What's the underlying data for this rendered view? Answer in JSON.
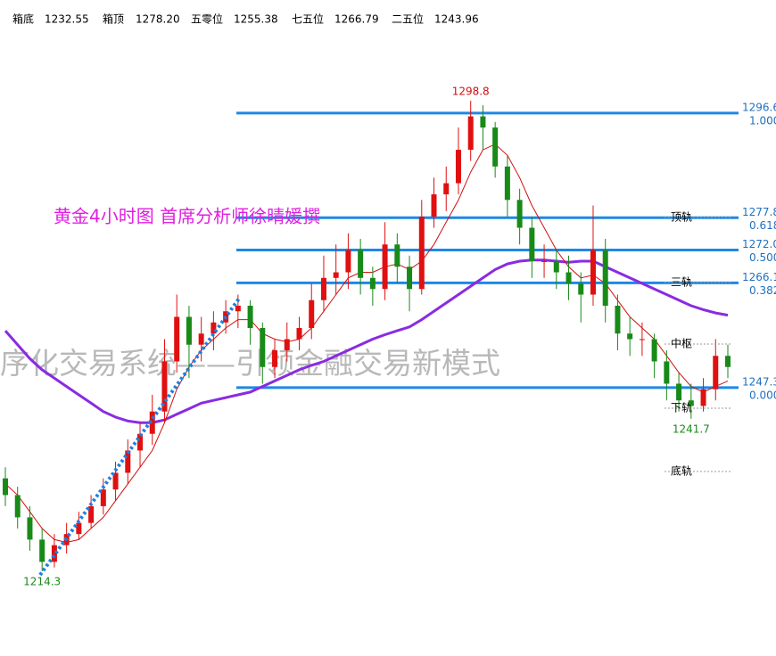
{
  "header": [
    {
      "label": "箱底",
      "value": "1232.55"
    },
    {
      "label": "箱顶",
      "value": "1278.20"
    },
    {
      "label": "五零位",
      "value": "1255.38"
    },
    {
      "label": "七五位",
      "value": "1266.79"
    },
    {
      "label": "二五位",
      "value": "1243.96"
    }
  ],
  "chart_data": {
    "type": "candlestick",
    "title": "黄金4小时图   首席分析师徐晴媛撰",
    "watermark": "序化交易系统——引领金融交易新模式",
    "ylim": [
      1199.1,
      1316.9
    ],
    "up_color": "#e01010",
    "down_color": "#188a18",
    "ohlc": [
      [
        1231,
        1233,
        1226,
        1228
      ],
      [
        1228,
        1229.5,
        1222,
        1224
      ],
      [
        1224,
        1226,
        1218,
        1220
      ],
      [
        1220,
        1222,
        1214.3,
        1216
      ],
      [
        1216,
        1221,
        1215,
        1219
      ],
      [
        1219,
        1223,
        1217.5,
        1221
      ],
      [
        1221,
        1225,
        1220,
        1223
      ],
      [
        1223,
        1228,
        1222,
        1226
      ],
      [
        1226,
        1231,
        1224.5,
        1229
      ],
      [
        1229,
        1234,
        1227,
        1232
      ],
      [
        1232,
        1238,
        1230,
        1236
      ],
      [
        1236,
        1241,
        1233,
        1239
      ],
      [
        1239,
        1246,
        1237,
        1243
      ],
      [
        1243,
        1256,
        1241,
        1252
      ],
      [
        1252,
        1264,
        1250,
        1260
      ],
      [
        1260,
        1262,
        1249,
        1255
      ],
      [
        1255,
        1260,
        1252,
        1257
      ],
      [
        1257,
        1261,
        1254,
        1259
      ],
      [
        1259,
        1263,
        1257,
        1261
      ],
      [
        1261,
        1264,
        1258,
        1262
      ],
      [
        1262,
        1263,
        1255,
        1258
      ],
      [
        1258,
        1259,
        1248,
        1251
      ],
      [
        1251,
        1256,
        1249,
        1254
      ],
      [
        1254,
        1259,
        1252,
        1256
      ],
      [
        1256,
        1260,
        1254,
        1258
      ],
      [
        1258,
        1266,
        1256,
        1263
      ],
      [
        1263,
        1271,
        1261,
        1267
      ],
      [
        1267,
        1273,
        1264,
        1268
      ],
      [
        1268,
        1275,
        1265,
        1272
      ],
      [
        1272,
        1274,
        1264,
        1267
      ],
      [
        1267,
        1269,
        1262,
        1265
      ],
      [
        1265,
        1277,
        1263,
        1273
      ],
      [
        1273,
        1275,
        1266,
        1269
      ],
      [
        1269,
        1271,
        1261,
        1265
      ],
      [
        1265,
        1281,
        1264,
        1278
      ],
      [
        1278,
        1285,
        1276,
        1282
      ],
      [
        1282,
        1287,
        1279,
        1284
      ],
      [
        1284,
        1294,
        1282,
        1290
      ],
      [
        1290,
        1298.8,
        1288,
        1296
      ],
      [
        1296,
        1298,
        1290,
        1294
      ],
      [
        1294,
        1295,
        1285,
        1287
      ],
      [
        1287,
        1289,
        1278,
        1281
      ],
      [
        1281,
        1283,
        1273,
        1276
      ],
      [
        1276,
        1278,
        1267,
        1270
      ],
      [
        1270,
        1273,
        1267,
        1270
      ],
      [
        1270,
        1272,
        1265,
        1268
      ],
      [
        1268,
        1271,
        1263,
        1266
      ],
      [
        1266,
        1268,
        1259,
        1264
      ],
      [
        1264,
        1280,
        1262,
        1272
      ],
      [
        1272,
        1274,
        1259,
        1262
      ],
      [
        1262,
        1264,
        1254,
        1257
      ],
      [
        1257,
        1260,
        1253,
        1256
      ],
      [
        1256,
        1259,
        1253,
        1256
      ],
      [
        1256,
        1257,
        1249,
        1252
      ],
      [
        1252,
        1254,
        1245,
        1248
      ],
      [
        1248,
        1250,
        1243,
        1245
      ],
      [
        1245,
        1248,
        1241.7,
        1244
      ],
      [
        1244,
        1249,
        1243,
        1247
      ],
      [
        1247,
        1256,
        1245,
        1253
      ],
      [
        1253,
        1255,
        1249,
        1251
      ]
    ],
    "moving_averages": [
      {
        "color": "#8a2be2",
        "width": 3,
        "values": [
          1257.5,
          1255,
          1252.5,
          1250.5,
          1249,
          1247.5,
          1246,
          1244.5,
          1243,
          1242,
          1241.3,
          1241,
          1241,
          1241.5,
          1242.5,
          1243.5,
          1244.5,
          1245,
          1245.5,
          1246,
          1246.5,
          1247.5,
          1248.5,
          1249.5,
          1250.5,
          1251.3,
          1252,
          1253,
          1254,
          1255,
          1256,
          1256.8,
          1257.5,
          1258.2,
          1259.5,
          1261,
          1262.5,
          1264,
          1265.5,
          1267,
          1268.5,
          1269.5,
          1270,
          1270.2,
          1270.2,
          1270,
          1269.8,
          1270,
          1270,
          1269,
          1268,
          1267,
          1266,
          1265,
          1264,
          1263,
          1262,
          1261.3,
          1260.7,
          1260.3
        ]
      },
      {
        "color": "#d01010",
        "width": 1,
        "values": [
          1230,
          1228,
          1225,
          1222,
          1220,
          1219.5,
          1220,
          1222,
          1224,
          1227,
          1230,
          1233,
          1236,
          1241,
          1247,
          1251,
          1254,
          1256,
          1258,
          1259.5,
          1259.5,
          1257,
          1256,
          1255.5,
          1256,
          1258,
          1261,
          1264,
          1267,
          1268,
          1268,
          1269,
          1269.5,
          1268.5,
          1270,
          1273,
          1277,
          1281,
          1286,
          1290,
          1291,
          1289,
          1285,
          1280,
          1276,
          1272,
          1269,
          1267,
          1267.5,
          1266,
          1263,
          1260,
          1258,
          1256,
          1253,
          1250,
          1247.5,
          1246.5,
          1247.5,
          1248.5
        ]
      }
    ],
    "level_color": "#1e88e5",
    "levels": [
      {
        "price": 1296.6,
        "ratio": "1.000"
      },
      {
        "price": 1277.8,
        "ratio": "0.618"
      },
      {
        "price": {
          "value": 1272,
          "label": "1272.0"
        },
        "ratio": "0.500"
      },
      {
        "price": 1266.1,
        "ratio": "0.382"
      },
      {
        "price": 1247.3,
        "ratio": "0.000"
      }
    ],
    "extremes": [
      {
        "value": 1298.8,
        "color": "#d01010"
      },
      {
        "value": 1214.3,
        "color": "#188a18"
      },
      {
        "value": 1241.7,
        "color": "#188a18"
      }
    ],
    "channel_labels": [
      "顶轨",
      "三轨",
      "中枢",
      "下轨",
      "底轨"
    ]
  }
}
